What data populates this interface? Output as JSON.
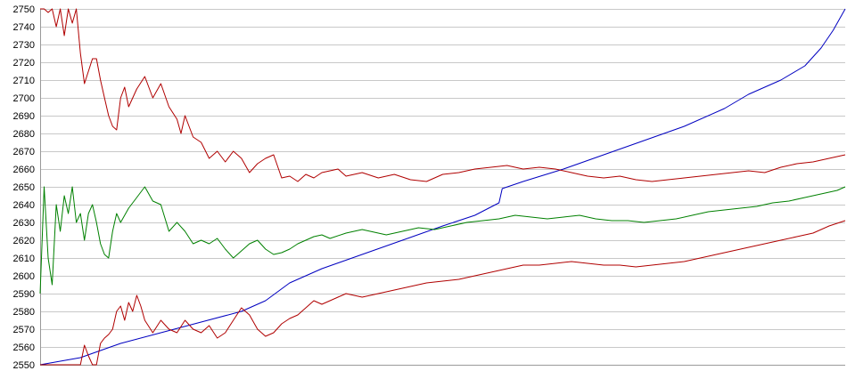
{
  "chart_data": {
    "type": "line",
    "title": "",
    "xlabel": "",
    "ylabel": "",
    "x_range": [
      0,
      100
    ],
    "ylim": [
      2550,
      2750
    ],
    "y_ticks": [
      2550,
      2560,
      2570,
      2580,
      2590,
      2600,
      2610,
      2620,
      2630,
      2640,
      2650,
      2660,
      2670,
      2680,
      2690,
      2700,
      2710,
      2720,
      2730,
      2740,
      2750
    ],
    "grid": true,
    "legend": "none",
    "series": [
      {
        "color": "#0000c0",
        "points": [
          [
            0,
            2550
          ],
          [
            5,
            2554
          ],
          [
            10,
            2562
          ],
          [
            15,
            2568
          ],
          [
            20,
            2574
          ],
          [
            25,
            2580
          ],
          [
            28,
            2586
          ],
          [
            31,
            2596
          ],
          [
            35,
            2604
          ],
          [
            40,
            2612
          ],
          [
            45,
            2620
          ],
          [
            50,
            2628
          ],
          [
            54,
            2634
          ],
          [
            57,
            2641
          ],
          [
            57.4,
            2649
          ],
          [
            60,
            2653
          ],
          [
            65,
            2660
          ],
          [
            70,
            2668
          ],
          [
            75,
            2676
          ],
          [
            80,
            2684
          ],
          [
            85,
            2694
          ],
          [
            88,
            2702
          ],
          [
            92,
            2710
          ],
          [
            95,
            2718
          ],
          [
            97,
            2728
          ],
          [
            98.5,
            2738
          ],
          [
            100,
            2750
          ]
        ]
      },
      {
        "color": "#b00000",
        "points": [
          [
            0,
            2750
          ],
          [
            0.5,
            2750
          ],
          [
            1,
            2748
          ],
          [
            1.5,
            2750
          ],
          [
            2,
            2740
          ],
          [
            2.5,
            2750
          ],
          [
            3,
            2735
          ],
          [
            3.5,
            2750
          ],
          [
            4,
            2742
          ],
          [
            4.5,
            2750
          ],
          [
            5,
            2725
          ],
          [
            5.5,
            2708
          ],
          [
            6,
            2715
          ],
          [
            6.5,
            2722
          ],
          [
            7,
            2722
          ],
          [
            7.5,
            2710
          ],
          [
            8,
            2700
          ],
          [
            8.5,
            2690
          ],
          [
            9,
            2684
          ],
          [
            9.5,
            2682
          ],
          [
            10,
            2700
          ],
          [
            10.5,
            2706
          ],
          [
            11,
            2695
          ],
          [
            12,
            2705
          ],
          [
            13,
            2712
          ],
          [
            14,
            2700
          ],
          [
            15,
            2708
          ],
          [
            16,
            2695
          ],
          [
            17,
            2688
          ],
          [
            17.5,
            2680
          ],
          [
            18,
            2690
          ],
          [
            19,
            2678
          ],
          [
            20,
            2675
          ],
          [
            21,
            2666
          ],
          [
            22,
            2670
          ],
          [
            23,
            2664
          ],
          [
            24,
            2670
          ],
          [
            25,
            2666
          ],
          [
            26,
            2658
          ],
          [
            27,
            2663
          ],
          [
            28,
            2666
          ],
          [
            29,
            2668
          ],
          [
            30,
            2655
          ],
          [
            31,
            2656
          ],
          [
            32,
            2653
          ],
          [
            33,
            2657
          ],
          [
            34,
            2655
          ],
          [
            35,
            2658
          ],
          [
            36,
            2659
          ],
          [
            37,
            2660
          ],
          [
            38,
            2656
          ],
          [
            40,
            2658
          ],
          [
            42,
            2655
          ],
          [
            44,
            2657
          ],
          [
            46,
            2654
          ],
          [
            48,
            2653
          ],
          [
            50,
            2657
          ],
          [
            52,
            2658
          ],
          [
            54,
            2660
          ],
          [
            56,
            2661
          ],
          [
            58,
            2662
          ],
          [
            60,
            2660
          ],
          [
            62,
            2661
          ],
          [
            64,
            2660
          ],
          [
            66,
            2658
          ],
          [
            68,
            2656
          ],
          [
            70,
            2655
          ],
          [
            72,
            2656
          ],
          [
            74,
            2654
          ],
          [
            76,
            2653
          ],
          [
            78,
            2654
          ],
          [
            80,
            2655
          ],
          [
            82,
            2656
          ],
          [
            84,
            2657
          ],
          [
            86,
            2658
          ],
          [
            88,
            2659
          ],
          [
            90,
            2658
          ],
          [
            92,
            2661
          ],
          [
            94,
            2663
          ],
          [
            96,
            2664
          ],
          [
            98,
            2666
          ],
          [
            100,
            2668
          ]
        ]
      },
      {
        "color": "#008000",
        "points": [
          [
            0,
            2590
          ],
          [
            0.5,
            2650
          ],
          [
            1,
            2610
          ],
          [
            1.5,
            2595
          ],
          [
            2,
            2640
          ],
          [
            2.5,
            2625
          ],
          [
            3,
            2645
          ],
          [
            3.5,
            2635
          ],
          [
            4,
            2650
          ],
          [
            4.5,
            2630
          ],
          [
            5,
            2635
          ],
          [
            5.5,
            2620
          ],
          [
            6,
            2635
          ],
          [
            6.5,
            2640
          ],
          [
            7,
            2630
          ],
          [
            7.5,
            2618
          ],
          [
            8,
            2612
          ],
          [
            8.5,
            2610
          ],
          [
            9,
            2625
          ],
          [
            9.5,
            2635
          ],
          [
            10,
            2630
          ],
          [
            11,
            2638
          ],
          [
            12,
            2644
          ],
          [
            13,
            2650
          ],
          [
            14,
            2642
          ],
          [
            15,
            2640
          ],
          [
            16,
            2625
          ],
          [
            17,
            2630
          ],
          [
            18,
            2625
          ],
          [
            19,
            2618
          ],
          [
            20,
            2620
          ],
          [
            21,
            2618
          ],
          [
            22,
            2621
          ],
          [
            23,
            2615
          ],
          [
            24,
            2610
          ],
          [
            25,
            2614
          ],
          [
            26,
            2618
          ],
          [
            27,
            2620
          ],
          [
            28,
            2615
          ],
          [
            29,
            2612
          ],
          [
            30,
            2613
          ],
          [
            31,
            2615
          ],
          [
            32,
            2618
          ],
          [
            33,
            2620
          ],
          [
            34,
            2622
          ],
          [
            35,
            2623
          ],
          [
            36,
            2621
          ],
          [
            38,
            2624
          ],
          [
            40,
            2626
          ],
          [
            42,
            2624
          ],
          [
            43,
            2623
          ],
          [
            45,
            2625
          ],
          [
            47,
            2627
          ],
          [
            49,
            2626
          ],
          [
            51,
            2628
          ],
          [
            53,
            2630
          ],
          [
            55,
            2631
          ],
          [
            57,
            2632
          ],
          [
            59,
            2634
          ],
          [
            61,
            2633
          ],
          [
            63,
            2632
          ],
          [
            65,
            2633
          ],
          [
            67,
            2634
          ],
          [
            69,
            2632
          ],
          [
            71,
            2631
          ],
          [
            73,
            2631
          ],
          [
            75,
            2630
          ],
          [
            77,
            2631
          ],
          [
            79,
            2632
          ],
          [
            81,
            2634
          ],
          [
            83,
            2636
          ],
          [
            85,
            2637
          ],
          [
            87,
            2638
          ],
          [
            89,
            2639
          ],
          [
            91,
            2641
          ],
          [
            93,
            2642
          ],
          [
            95,
            2644
          ],
          [
            97,
            2646
          ],
          [
            99,
            2648
          ],
          [
            100,
            2650
          ]
        ]
      },
      {
        "color": "#b00000",
        "points": [
          [
            0,
            2550
          ],
          [
            3,
            2550
          ],
          [
            5,
            2550
          ],
          [
            5.5,
            2561
          ],
          [
            6,
            2555
          ],
          [
            6.5,
            2550
          ],
          [
            7,
            2550
          ],
          [
            7.5,
            2562
          ],
          [
            8,
            2565
          ],
          [
            8.5,
            2567
          ],
          [
            9,
            2570
          ],
          [
            9.5,
            2580
          ],
          [
            10,
            2583
          ],
          [
            10.5,
            2575
          ],
          [
            11,
            2585
          ],
          [
            11.5,
            2580
          ],
          [
            12,
            2589
          ],
          [
            12.5,
            2583
          ],
          [
            13,
            2575
          ],
          [
            14,
            2568
          ],
          [
            15,
            2575
          ],
          [
            16,
            2570
          ],
          [
            17,
            2568
          ],
          [
            18,
            2575
          ],
          [
            19,
            2570
          ],
          [
            20,
            2568
          ],
          [
            21,
            2572
          ],
          [
            22,
            2565
          ],
          [
            23,
            2568
          ],
          [
            24,
            2575
          ],
          [
            25,
            2582
          ],
          [
            26,
            2578
          ],
          [
            27,
            2570
          ],
          [
            28,
            2566
          ],
          [
            29,
            2568
          ],
          [
            30,
            2573
          ],
          [
            31,
            2576
          ],
          [
            32,
            2578
          ],
          [
            33,
            2582
          ],
          [
            34,
            2586
          ],
          [
            35,
            2584
          ],
          [
            36,
            2586
          ],
          [
            37,
            2588
          ],
          [
            38,
            2590
          ],
          [
            40,
            2588
          ],
          [
            42,
            2590
          ],
          [
            44,
            2592
          ],
          [
            46,
            2594
          ],
          [
            48,
            2596
          ],
          [
            50,
            2597
          ],
          [
            52,
            2598
          ],
          [
            54,
            2600
          ],
          [
            56,
            2602
          ],
          [
            58,
            2604
          ],
          [
            60,
            2606
          ],
          [
            62,
            2606
          ],
          [
            64,
            2607
          ],
          [
            66,
            2608
          ],
          [
            68,
            2607
          ],
          [
            70,
            2606
          ],
          [
            72,
            2606
          ],
          [
            74,
            2605
          ],
          [
            76,
            2606
          ],
          [
            78,
            2607
          ],
          [
            80,
            2608
          ],
          [
            82,
            2610
          ],
          [
            84,
            2612
          ],
          [
            86,
            2614
          ],
          [
            88,
            2616
          ],
          [
            90,
            2618
          ],
          [
            92,
            2620
          ],
          [
            94,
            2622
          ],
          [
            96,
            2624
          ],
          [
            98,
            2628
          ],
          [
            100,
            2631
          ]
        ]
      }
    ]
  }
}
